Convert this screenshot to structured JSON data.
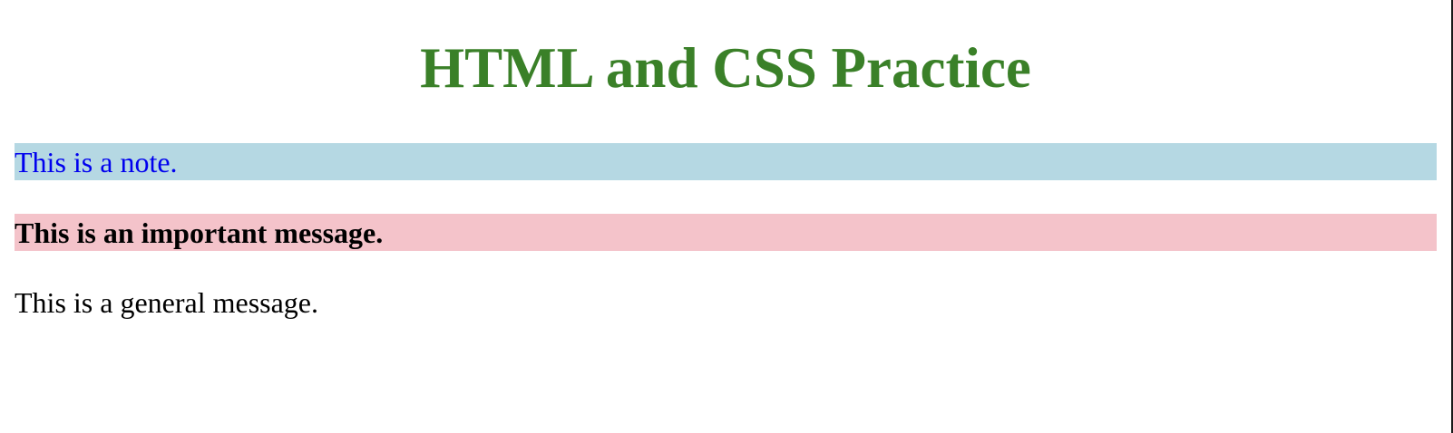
{
  "page": {
    "title": "HTML and CSS Practice",
    "note": "This is a note.",
    "important": "This is an important message.",
    "general": "This is a general message."
  },
  "colors": {
    "title": "#3a8028",
    "note_text": "#0000ee",
    "note_background": "#b5d8e3",
    "important_background": "#f4c3ca"
  }
}
